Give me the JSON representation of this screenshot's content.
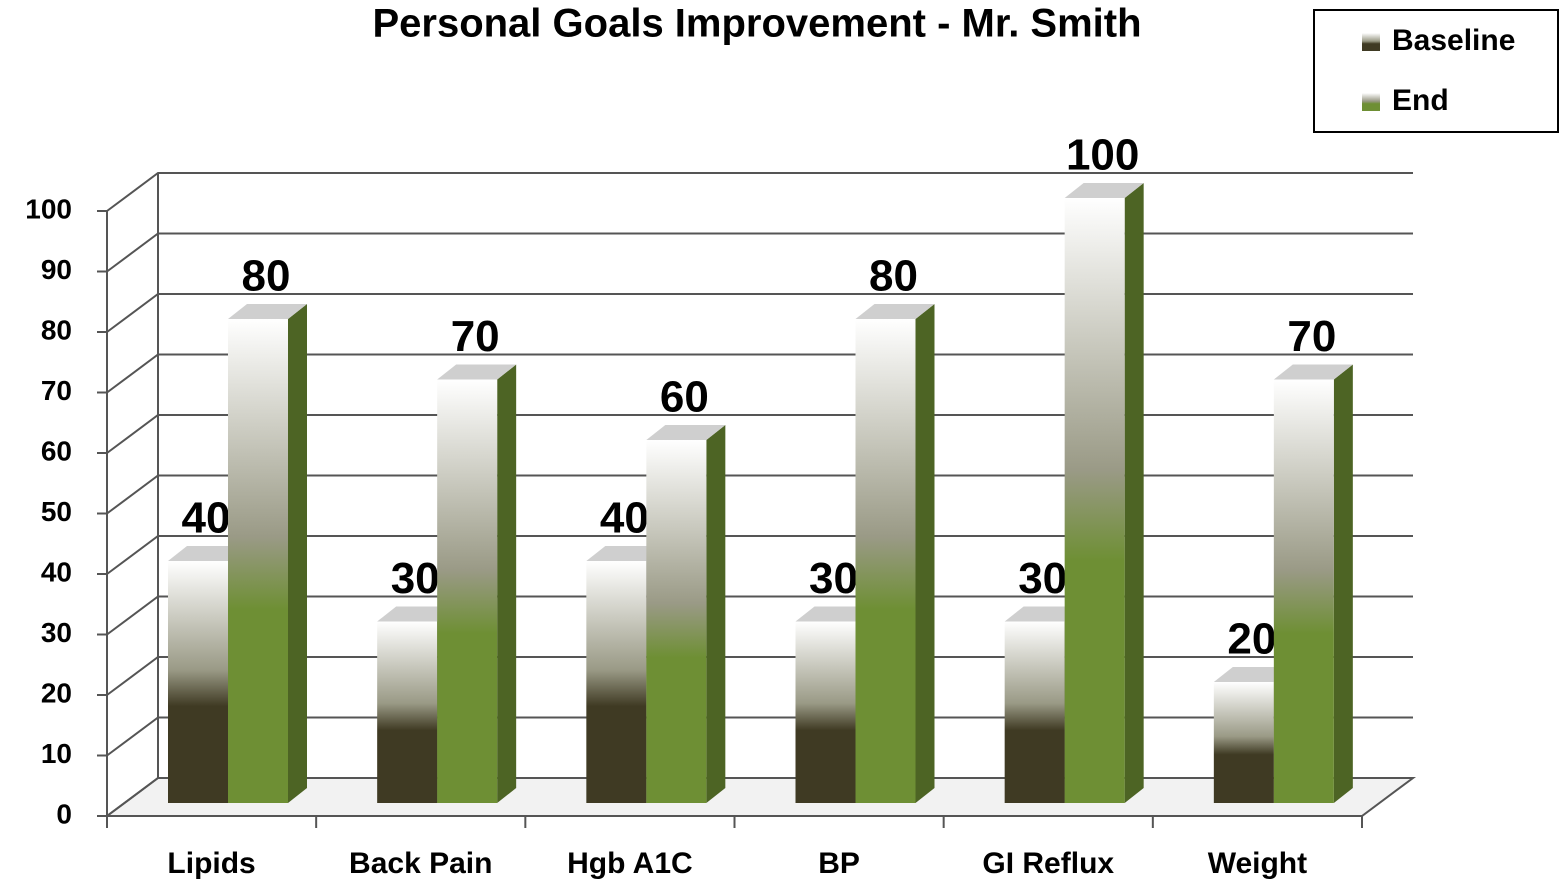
{
  "chart_data": {
    "type": "bar3d",
    "title": "Personal Goals Improvement - Mr. Smith",
    "categories": [
      "Lipids",
      "Back Pain",
      "Hgb A1C",
      "BP",
      "GI Reflux",
      "Weight"
    ],
    "series": [
      {
        "name": "Baseline",
        "color": "#3f3a23",
        "values": [
          40,
          30,
          40,
          30,
          30,
          20
        ]
      },
      {
        "name": "End",
        "color": "#6e8f34",
        "values": [
          80,
          70,
          60,
          80,
          100,
          70
        ]
      }
    ],
    "ylim": [
      0,
      100
    ],
    "yticks": [
      0,
      10,
      20,
      30,
      40,
      50,
      60,
      70,
      80,
      90,
      100
    ],
    "grid": true,
    "legend": "top-right"
  }
}
